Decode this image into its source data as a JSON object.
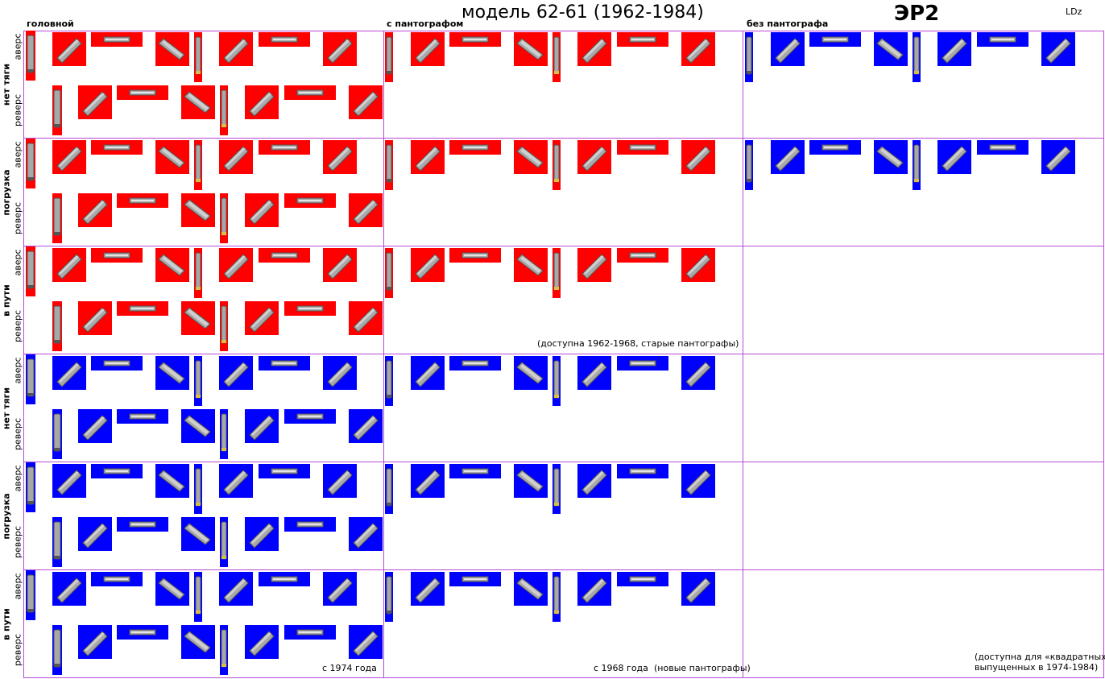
{
  "header": {
    "title": "модель 62-61 (1962-1984)",
    "model": "ЭР2",
    "operator": "LDz"
  },
  "columns": [
    {
      "id": "head",
      "label": "головной"
    },
    {
      "id": "panto",
      "label": "с пантографом"
    },
    {
      "id": "nopanto",
      "label": "без пантографа"
    }
  ],
  "rows": [
    {
      "label": "нет тяги",
      "color": "red",
      "colors": [
        "#ff0000",
        "#ff0000",
        "#0000ff"
      ],
      "panto_visible": true,
      "nopanto_visible": true
    },
    {
      "label": "погрузка",
      "color": "red",
      "colors": [
        "#ff0000",
        "#ff0000",
        "#0000ff"
      ],
      "panto_visible": true,
      "nopanto_visible": true
    },
    {
      "label": "в пути",
      "color": "red",
      "colors": [
        "#ff0000",
        "#ff0000",
        "#0000ff"
      ],
      "panto_visible": true,
      "nopanto_visible": false
    },
    {
      "label": "нет тяги",
      "color": "blue",
      "colors": [
        "#0000ff",
        "#0000ff",
        "#0000ff"
      ],
      "panto_visible": true,
      "nopanto_visible": false
    },
    {
      "label": "погрузка",
      "color": "blue",
      "colors": [
        "#0000ff",
        "#0000ff",
        "#0000ff"
      ],
      "panto_visible": true,
      "nopanto_visible": false
    },
    {
      "label": "в пути",
      "color": "blue",
      "colors": [
        "#0000ff",
        "#0000ff",
        "#0000ff"
      ],
      "panto_visible": true,
      "nopanto_visible": false
    }
  ],
  "sub_labels": {
    "avers": "аверс",
    "revers": "реверс"
  },
  "notes": {
    "old_panto": "(доступна 1962-1968, старые пантографы)",
    "since_1974": "с 1974 года",
    "since_1968": "с 1968 года",
    "new_panto": "(новые пантографы)",
    "square_line1": "(доступна для «квадратных»,",
    "square_line2": "выпущенных в 1974-1984)"
  },
  "colors": {
    "red": "#ff0000",
    "blue": "#0000ff",
    "grid": "#b54bd6",
    "car_body": "#a8a8a8",
    "car_roof": "#cfcfcf",
    "car_dark": "#555555"
  }
}
